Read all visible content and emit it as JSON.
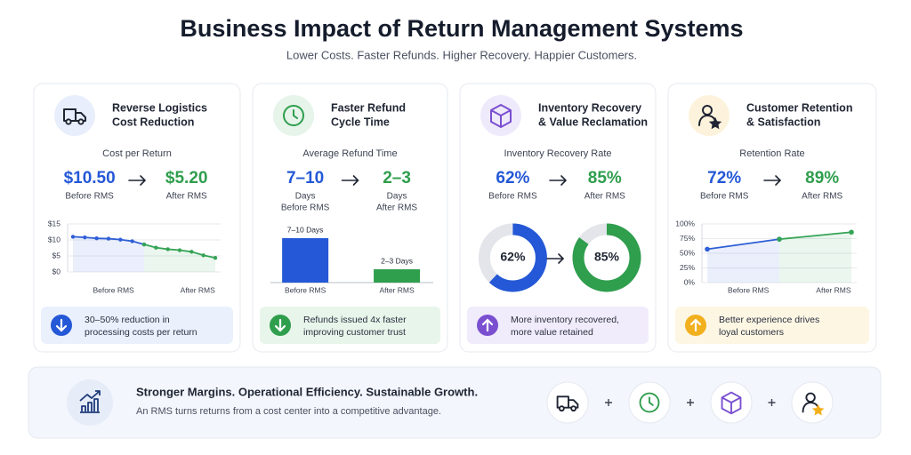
{
  "header": {
    "title": "Business Impact of Return Management Systems",
    "subtitle": "Lower Costs. Faster Refunds. Higher Recovery. Happier Customers."
  },
  "cards": [
    {
      "title": [
        "Reverse Logistics",
        "Cost Reduction"
      ],
      "metric": "Cost per Return",
      "before": {
        "value": "$10.50",
        "label": [
          "Before RMS"
        ]
      },
      "after": {
        "value": "$5.20",
        "label": [
          "After RMS"
        ]
      },
      "chart": {
        "type": "line",
        "ylim": [
          0,
          15
        ],
        "yticks": [
          {
            "value": 15,
            "label": "$15"
          },
          {
            "value": 10,
            "label": "$10"
          },
          {
            "value": 5,
            "label": "$5"
          },
          {
            "value": 0,
            "label": "$0"
          }
        ],
        "xlabels": [
          "Before RMS",
          "After RMS"
        ],
        "series": [
          {
            "color": "#2f5fd6",
            "values": [
              11,
              10.8,
              10.5,
              10.4,
              10.1,
              9.6,
              8.6,
              null,
              null,
              null,
              null,
              null,
              null
            ]
          },
          {
            "color": "#35a355",
            "values": [
              null,
              null,
              null,
              null,
              null,
              null,
              8.6,
              7.6,
              7.1,
              6.8,
              6.3,
              5.2,
              4.4
            ]
          }
        ]
      },
      "note": [
        "30–50% reduction in",
        "processing costs per return"
      ]
    },
    {
      "title": [
        "Faster Refund",
        "Cycle Time"
      ],
      "metric": "Average Refund Time",
      "before": {
        "value": "7–10",
        "label": [
          "Days",
          "Before RMS"
        ]
      },
      "after": {
        "value": "2–3",
        "label": [
          "Days",
          "After RMS"
        ]
      },
      "chart": {
        "type": "bar",
        "categories": [
          "Before RMS",
          "After RMS"
        ],
        "values": [
          10,
          3
        ],
        "value_labels": [
          "7–10 Days",
          "2–3 Days"
        ],
        "colors": [
          "#2458d6",
          "#2f9e4d"
        ]
      },
      "note": [
        "Refunds issued 4x faster",
        "improving customer trust"
      ]
    },
    {
      "title": [
        "Inventory Recovery",
        "& Value Reclamation"
      ],
      "metric": "Inventory Recovery Rate",
      "before": {
        "value": "62%",
        "label": [
          "Before RMS"
        ]
      },
      "after": {
        "value": "85%",
        "label": [
          "After RMS"
        ]
      },
      "chart": {
        "type": "donut",
        "values": [
          62,
          85
        ],
        "value_labels": [
          "62%",
          "85%"
        ],
        "colors": [
          "#2458d6",
          "#2f9e4d"
        ],
        "track": "#e3e5ea"
      },
      "note": [
        "More inventory recovered,",
        "more value retained"
      ]
    },
    {
      "title": [
        "Customer Retention",
        "& Satisfaction"
      ],
      "metric": "Retention Rate",
      "before": {
        "value": "72%",
        "label": [
          "Before RMS"
        ]
      },
      "after": {
        "value": "89%",
        "label": [
          "After RMS"
        ]
      },
      "chart": {
        "type": "line",
        "ylim": [
          0,
          100
        ],
        "yticks": [
          {
            "value": 100,
            "label": "100%"
          },
          {
            "value": 75,
            "label": "75%"
          },
          {
            "value": 50,
            "label": "50%"
          },
          {
            "value": 25,
            "label": "25%"
          },
          {
            "value": 0,
            "label": "0%"
          }
        ],
        "xlabels": [
          "Before RMS",
          "After RMS"
        ],
        "series": [
          {
            "color": "#2f5fd6",
            "values": [
              57,
              74,
              null
            ]
          },
          {
            "color": "#35a355",
            "values": [
              null,
              74,
              86
            ]
          }
        ]
      },
      "note": [
        "Better experience drives",
        "loyal customers"
      ]
    }
  ],
  "footer": {
    "title": "Stronger Margins. Operational Efficiency. Sustainable Growth.",
    "text": "An RMS turns returns from a cost center into a competitive advantage."
  }
}
